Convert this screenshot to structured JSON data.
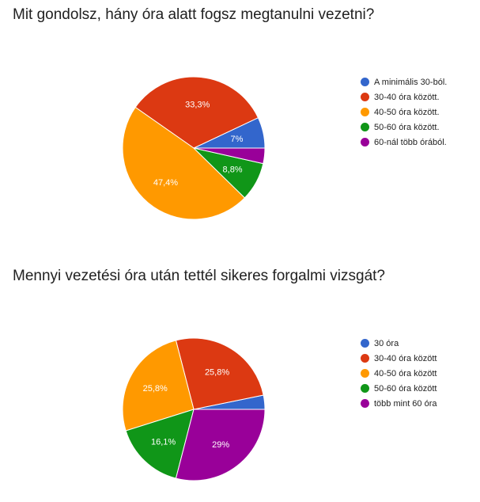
{
  "chart_data": [
    {
      "type": "pie",
      "title": "Mit gondolsz, hány óra alatt fogsz megtanulni vezetni?",
      "categories": [
        "A minimális 30-ból.",
        "30-40 óra között.",
        "40-50 óra között.",
        "50-60 óra között.",
        "60-nál több órából."
      ],
      "values": [
        7.0,
        33.3,
        47.4,
        8.8,
        3.5
      ],
      "labels": [
        "7%",
        "33,3%",
        "47,4%",
        "8,8%",
        ""
      ],
      "colors": [
        "#3366cc",
        "#dc3912",
        "#ff9900",
        "#109618",
        "#990099"
      ],
      "legend": "right"
    },
    {
      "type": "pie",
      "title": "Mennyi vezetési óra után tettél sikeres forgalmi vizsgát?",
      "categories": [
        "30 óra",
        "30-40 óra között",
        "40-50 óra között",
        "50-60 óra között",
        "több mint 60 óra"
      ],
      "values": [
        3.2,
        25.8,
        25.8,
        16.1,
        29.0
      ],
      "labels": [
        "",
        "25,8%",
        "25,8%",
        "16,1%",
        "29%"
      ],
      "colors": [
        "#3366cc",
        "#dc3912",
        "#ff9900",
        "#109618",
        "#990099"
      ],
      "legend": "right"
    }
  ]
}
